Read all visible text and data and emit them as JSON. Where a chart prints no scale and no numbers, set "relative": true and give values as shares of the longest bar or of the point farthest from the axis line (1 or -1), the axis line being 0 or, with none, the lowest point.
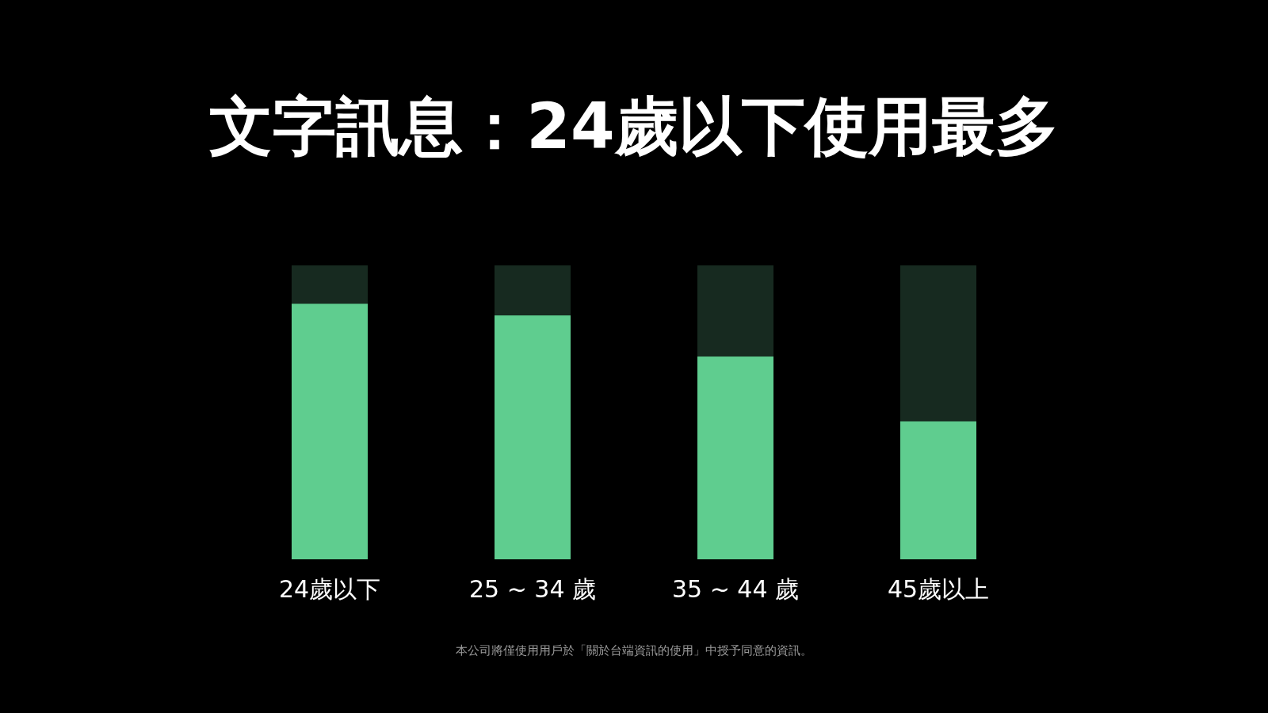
{
  "chart_data": {
    "type": "bar",
    "title": "文字訊息：24歲以下使用最多",
    "categories": [
      "24歲以下",
      "25 ~ 34 歲",
      "35 ~ 44 歲",
      "45歲以上"
    ],
    "relative": true,
    "stacked": true,
    "series": [
      {
        "color": "#5fcd8f",
        "values": [
          0.87,
          0.83,
          0.69,
          0.47
        ]
      },
      {
        "color": "#172a20",
        "values": [
          0.13,
          0.17,
          0.31,
          0.53
        ]
      }
    ],
    "annotations": [
      "本公司將僅使用用戶於「關於台端資訊的使用」中授予同意的資訊。"
    ]
  }
}
